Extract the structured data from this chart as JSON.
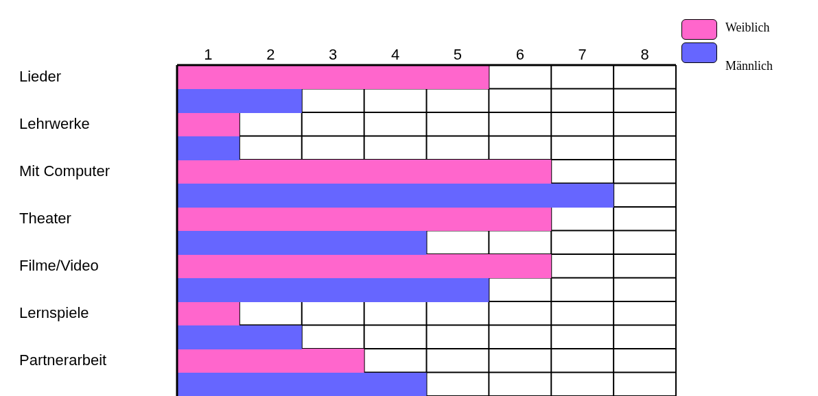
{
  "chart_data": {
    "type": "bar",
    "orientation": "horizontal",
    "categories": [
      "Lieder",
      "Lehrwerke",
      "Mit Computer",
      "Theater",
      "Filme/Video",
      "Lernspiele",
      "Partnerarbeit"
    ],
    "series": [
      {
        "name": "Weiblich",
        "color": "#ff66cc",
        "values": [
          5,
          1,
          6,
          6,
          6,
          1,
          3
        ]
      },
      {
        "name": "Männlich",
        "color": "#6666ff",
        "values": [
          2,
          1,
          7,
          4,
          5,
          2,
          4
        ]
      }
    ],
    "xlim": [
      0,
      8
    ],
    "xticks": [
      {
        "value": 0.5,
        "label": "1"
      },
      {
        "value": 1.5,
        "label": "2"
      },
      {
        "value": 2.5,
        "label": "3"
      },
      {
        "value": 3.5,
        "label": "4"
      },
      {
        "value": 4.5,
        "label": "5"
      },
      {
        "value": 5.5,
        "label": "6"
      },
      {
        "value": 6.5,
        "label": "7"
      },
      {
        "value": 7.5,
        "label": "8"
      }
    ],
    "grid": true,
    "legend": "top right"
  }
}
